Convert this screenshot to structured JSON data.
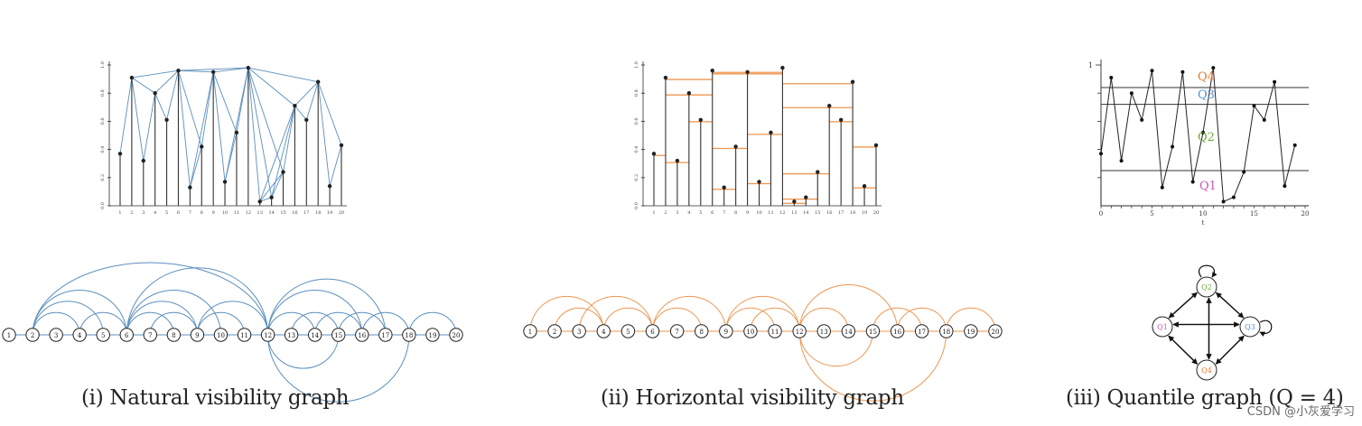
{
  "colors": {
    "blue": "#5b8fbe",
    "orange": "#ee9650",
    "q1": "#c35bbd",
    "q2": "#6aaa3c",
    "q3": "#4f8fd0",
    "q4": "#e57a35",
    "ink": "#2a2a2a"
  },
  "series": [
    0.37,
    0.91,
    0.32,
    0.8,
    0.61,
    0.96,
    0.13,
    0.42,
    0.95,
    0.17,
    0.52,
    0.98,
    0.03,
    0.06,
    0.24,
    0.71,
    0.61,
    0.88,
    0.14,
    0.43
  ],
  "x_ticks": [
    "1",
    "2",
    "3",
    "4",
    "5",
    "6",
    "7",
    "8",
    "9",
    "10",
    "11",
    "12",
    "13",
    "14",
    "15",
    "16",
    "17",
    "18",
    "19",
    "20"
  ],
  "y_ticks": [
    "0.0",
    "0.2",
    "0.4",
    "0.6",
    "0.8",
    "1.0"
  ],
  "natural_edges": [
    [
      1,
      2
    ],
    [
      2,
      3
    ],
    [
      3,
      4
    ],
    [
      4,
      5
    ],
    [
      5,
      6
    ],
    [
      6,
      7
    ],
    [
      7,
      8
    ],
    [
      8,
      9
    ],
    [
      9,
      10
    ],
    [
      10,
      11
    ],
    [
      11,
      12
    ],
    [
      12,
      13
    ],
    [
      13,
      14
    ],
    [
      14,
      15
    ],
    [
      15,
      16
    ],
    [
      16,
      17
    ],
    [
      17,
      18
    ],
    [
      18,
      19
    ],
    [
      19,
      20
    ],
    [
      2,
      4
    ],
    [
      2,
      6
    ],
    [
      4,
      6
    ],
    [
      6,
      9
    ],
    [
      6,
      12
    ],
    [
      9,
      12
    ],
    [
      7,
      9
    ],
    [
      6,
      8
    ],
    [
      9,
      11
    ],
    [
      12,
      16
    ],
    [
      12,
      18
    ],
    [
      16,
      18
    ],
    [
      18,
      20
    ],
    [
      13,
      15
    ],
    [
      12,
      14
    ],
    [
      12,
      15
    ],
    [
      14,
      16
    ],
    [
      12,
      17
    ],
    [
      2,
      12
    ],
    [
      2,
      5
    ],
    [
      6,
      10
    ],
    [
      15,
      17
    ]
  ],
  "horizontal_edges": [
    [
      1,
      2
    ],
    [
      2,
      3
    ],
    [
      3,
      4
    ],
    [
      4,
      5
    ],
    [
      5,
      6
    ],
    [
      6,
      7
    ],
    [
      7,
      8
    ],
    [
      8,
      9
    ],
    [
      9,
      10
    ],
    [
      10,
      11
    ],
    [
      11,
      12
    ],
    [
      12,
      13
    ],
    [
      13,
      14
    ],
    [
      14,
      15
    ],
    [
      15,
      16
    ],
    [
      16,
      17
    ],
    [
      17,
      18
    ],
    [
      18,
      19
    ],
    [
      19,
      20
    ],
    [
      1,
      4
    ],
    [
      3,
      6
    ],
    [
      2,
      4
    ],
    [
      4,
      6
    ],
    [
      6,
      8
    ],
    [
      8,
      9
    ],
    [
      6,
      9
    ],
    [
      9,
      12
    ],
    [
      9,
      11
    ],
    [
      12,
      16
    ],
    [
      12,
      18
    ],
    [
      16,
      18
    ],
    [
      18,
      20
    ],
    [
      15,
      17
    ],
    [
      12,
      15
    ],
    [
      12,
      14
    ],
    [
      11,
      12
    ],
    [
      10,
      12
    ],
    [
      5,
      6
    ]
  ],
  "quantile": {
    "x_ticks": [
      "0",
      "5",
      "10",
      "15",
      "20"
    ],
    "y_top_label": "1",
    "x_label": "t",
    "levels": [
      0.84,
      0.72,
      0.25
    ],
    "labels": [
      "Q4",
      "Q3",
      "Q2",
      "Q1"
    ],
    "nodes": [
      "Q1",
      "Q2",
      "Q3",
      "Q4"
    ]
  },
  "captions": {
    "natural": "(i) Natural visibility graph",
    "horizontal": "(ii) Horizontal visibility graph",
    "quantile": "(iii) Quantile graph (Q = 4)"
  },
  "watermark": "CSDN @小灰爱学习"
}
